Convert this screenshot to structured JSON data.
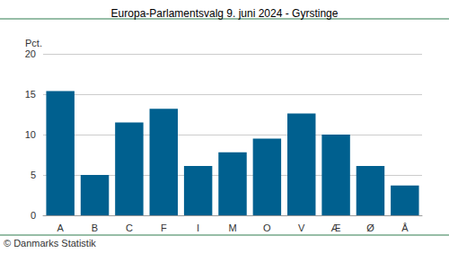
{
  "chart_data": {
    "type": "bar",
    "title": "Europa-Parlamentsvalg 9. juni 2024 - Gyrstinge",
    "ylabel": "Pct.",
    "source": "© Danmarks Statistik",
    "categories": [
      "A",
      "B",
      "C",
      "F",
      "I",
      "M",
      "O",
      "V",
      "Æ",
      "Ø",
      "Å"
    ],
    "values": [
      15.4,
      5.0,
      11.5,
      13.2,
      6.1,
      7.8,
      9.5,
      12.6,
      10.0,
      6.1,
      3.7
    ],
    "color": "#00608f",
    "ylim": [
      0,
      20
    ],
    "yticks": [
      0,
      5,
      10,
      15,
      20
    ],
    "grid": true
  }
}
